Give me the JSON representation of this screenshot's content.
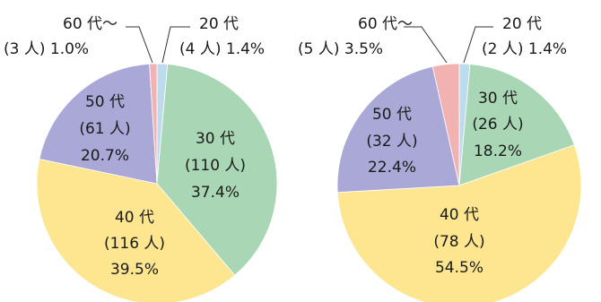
{
  "chart_data": [
    {
      "type": "pie",
      "title": "",
      "slices": [
        {
          "name": "20代",
          "label": [
            "20 代",
            "(4 人)  1.4%"
          ],
          "count": 4,
          "percent": 1.4,
          "color": "#bcdcee"
        },
        {
          "name": "30代",
          "label": [
            "30 代",
            "(110 人)",
            "37.4%"
          ],
          "count": 110,
          "percent": 37.4,
          "color": "#a9d7b6"
        },
        {
          "name": "40代",
          "label": [
            "40 代",
            "(116 人)",
            "39.5%"
          ],
          "count": 116,
          "percent": 39.5,
          "color": "#fde68f"
        },
        {
          "name": "50代",
          "label": [
            "50 代",
            "(61 人)",
            "20.7%"
          ],
          "count": 61,
          "percent": 20.7,
          "color": "#aaa8d6"
        },
        {
          "name": "60代〜",
          "label": [
            "60 代〜",
            "(3 人)  1.0%"
          ],
          "count": 3,
          "percent": 1.0,
          "color": "#f2b2b2"
        }
      ]
    },
    {
      "type": "pie",
      "title": "",
      "slices": [
        {
          "name": "20代",
          "label": [
            "20 代",
            "(2 人)  1.4%"
          ],
          "count": 2,
          "percent": 1.4,
          "color": "#bcdcee"
        },
        {
          "name": "30代",
          "label": [
            "30 代",
            "(26 人)",
            "18.2%"
          ],
          "count": 26,
          "percent": 18.2,
          "color": "#a9d7b6"
        },
        {
          "name": "40代",
          "label": [
            "40 代",
            "(78 人)",
            "54.5%"
          ],
          "count": 78,
          "percent": 54.5,
          "color": "#fde68f"
        },
        {
          "name": "50代",
          "label": [
            "50 代",
            "(32 人)",
            "22.4%"
          ],
          "count": 32,
          "percent": 22.4,
          "color": "#aaa8d6"
        },
        {
          "name": "60代〜",
          "label": [
            "60 代〜",
            "(5 人)  3.5%"
          ],
          "count": 5,
          "percent": 3.5,
          "color": "#f2b2b2"
        }
      ]
    }
  ]
}
